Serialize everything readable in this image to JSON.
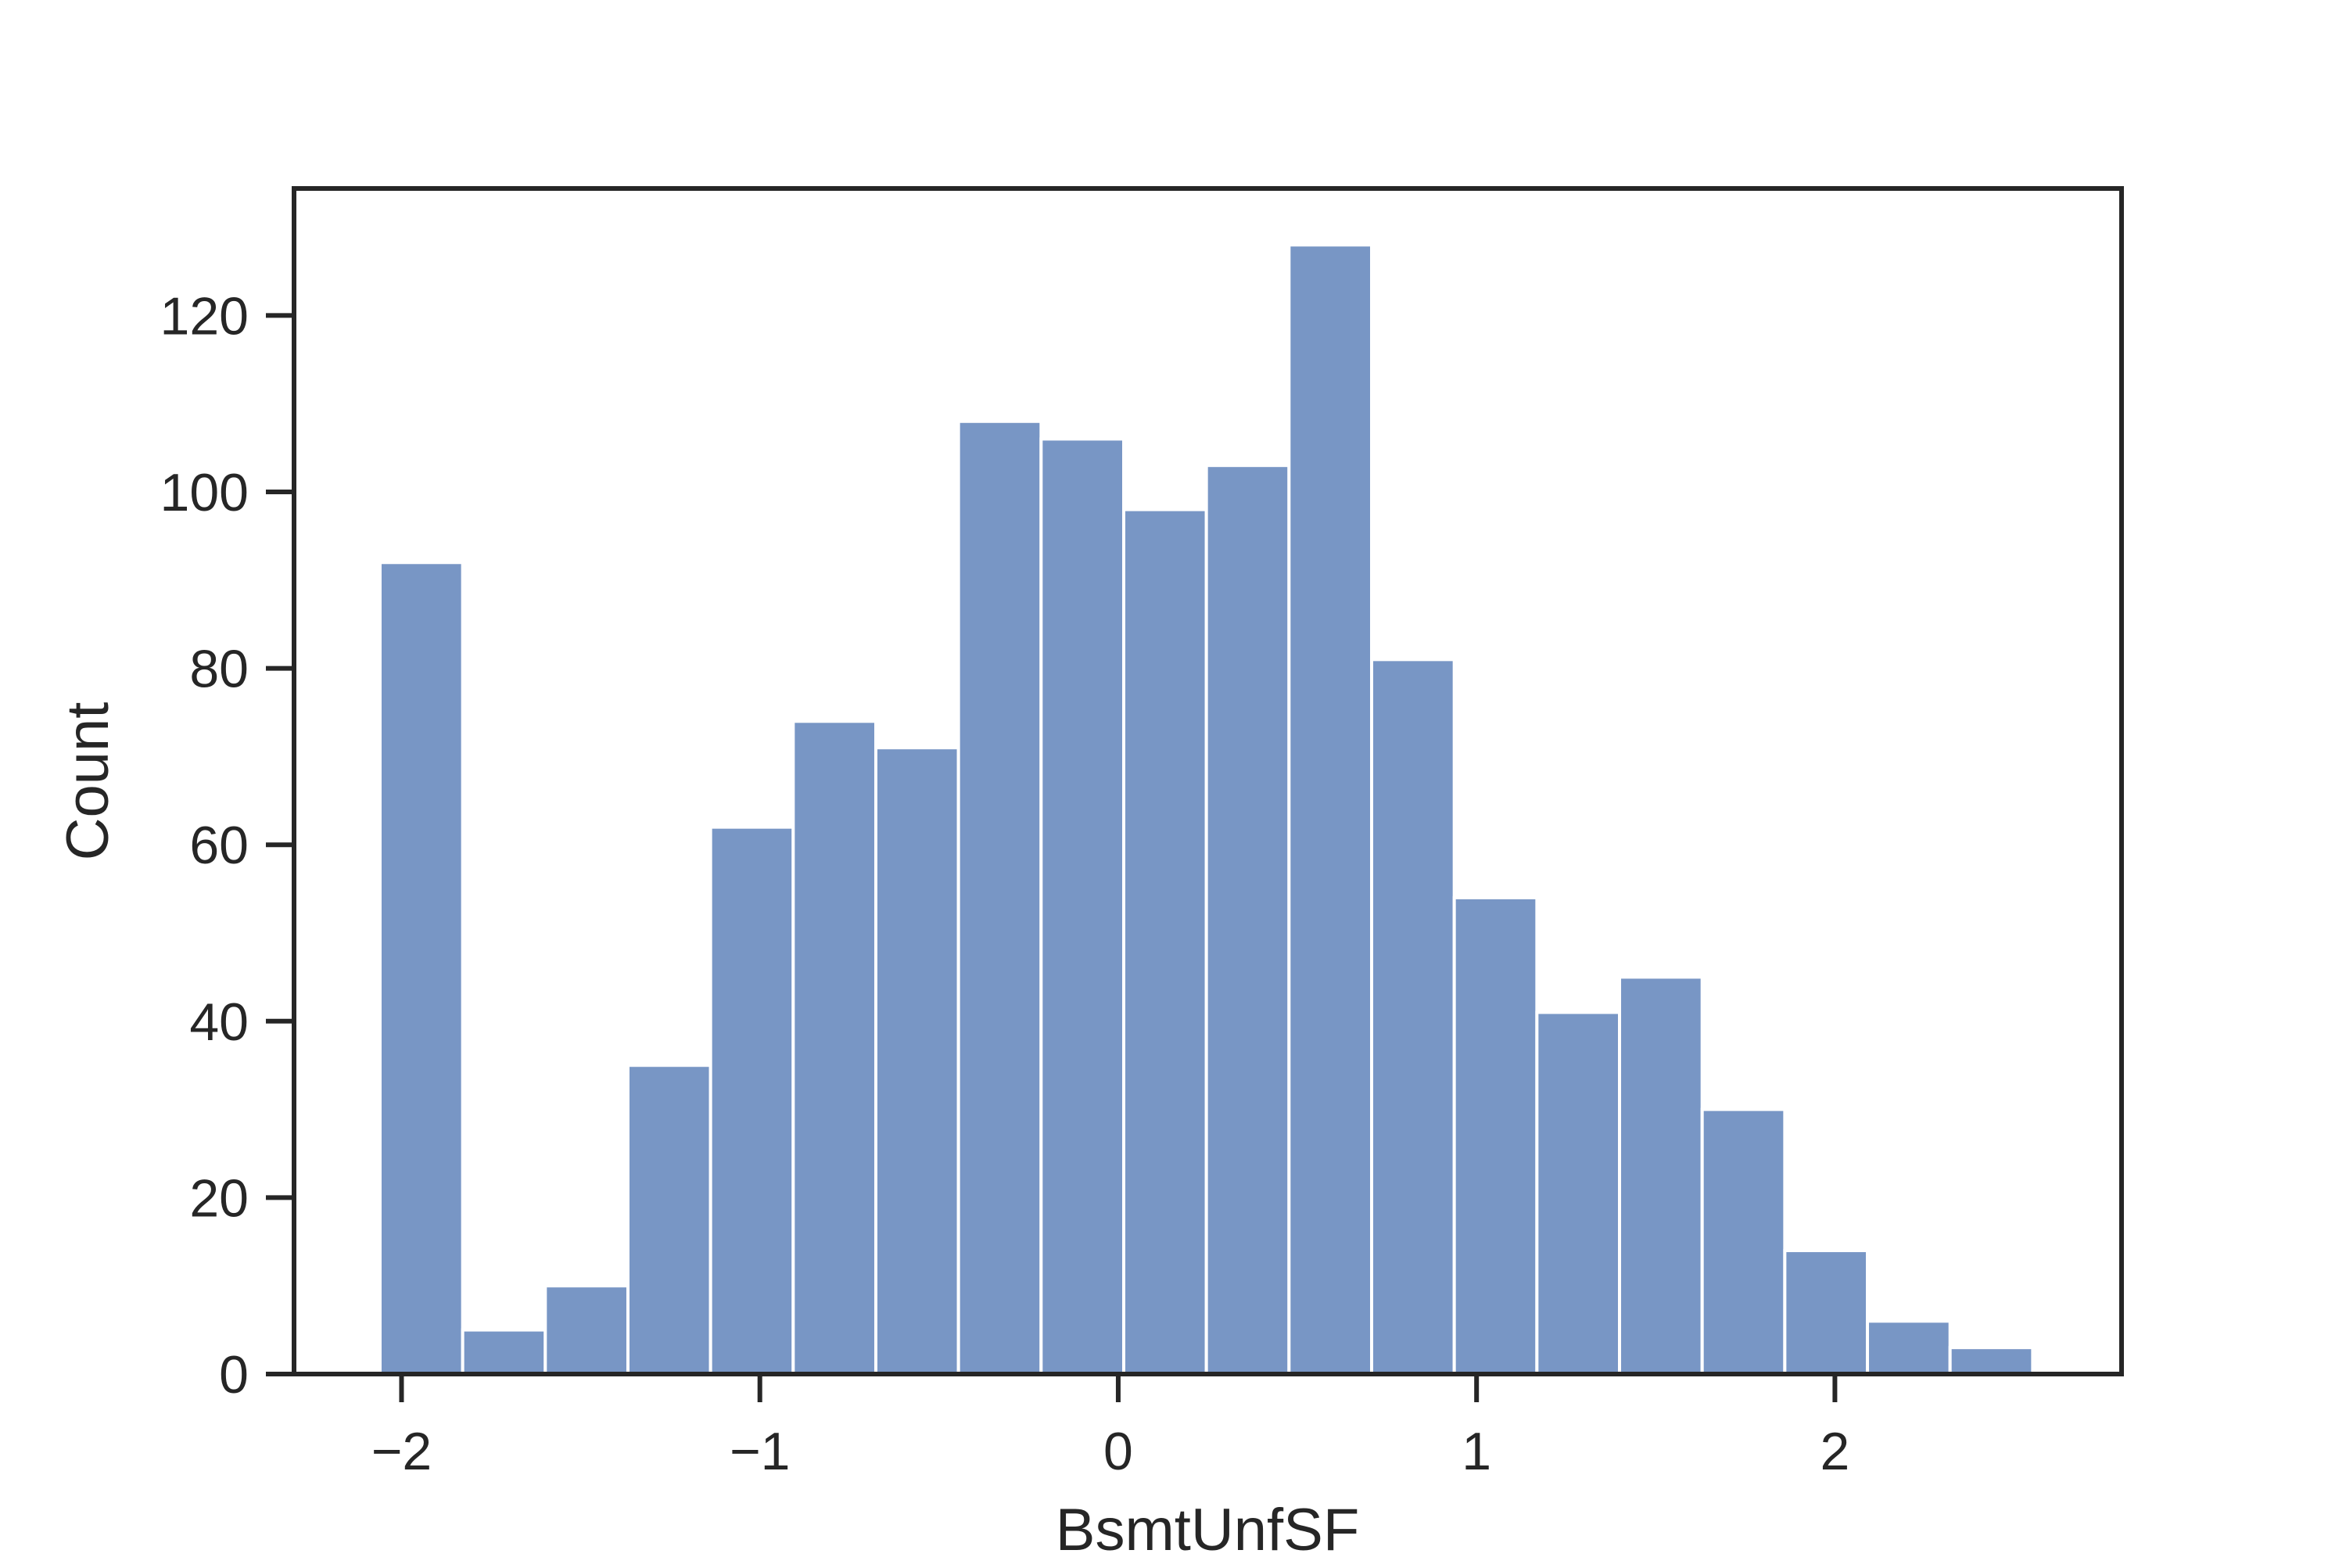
{
  "chart_data": {
    "type": "bar",
    "title": "",
    "xlabel": "BsmtUnfSF",
    "ylabel": "Count",
    "bins": {
      "start": -2.06,
      "width": 0.2306
    },
    "values": [
      92,
      5,
      10,
      35,
      62,
      74,
      71,
      108,
      106,
      98,
      103,
      128,
      81,
      54,
      41,
      45,
      30,
      14,
      6,
      3
    ],
    "xlim": [
      -2.3,
      2.8
    ],
    "ylim": [
      0,
      134.4
    ],
    "xticks": [
      -2,
      -1,
      0,
      1,
      2
    ],
    "xtick_labels": [
      "−2",
      "−1",
      "0",
      "1",
      "2"
    ],
    "yticks": [
      0,
      20,
      40,
      60,
      80,
      100,
      120
    ],
    "ytick_labels": [
      "0",
      "20",
      "40",
      "60",
      "80",
      "100",
      "120"
    ],
    "bar_color": "#7896c5",
    "bar_edge_color": "#ffffff",
    "axis_color": "#262626",
    "grid": false,
    "legend": "none"
  }
}
